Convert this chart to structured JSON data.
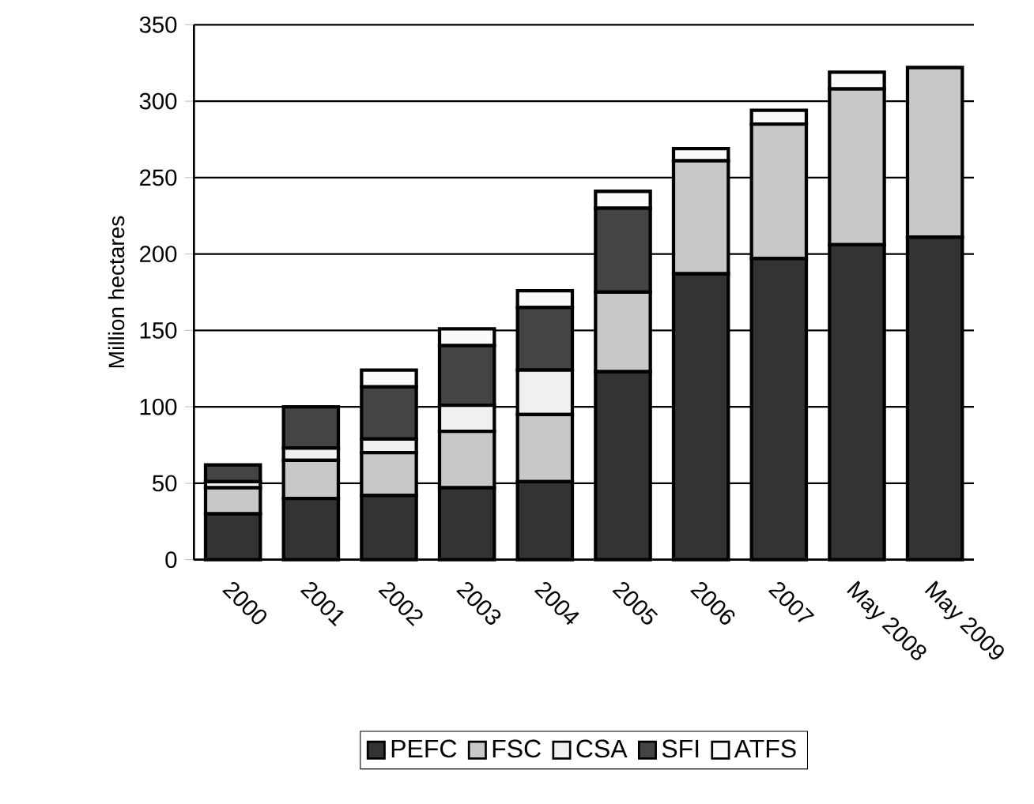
{
  "chart_data": {
    "type": "bar",
    "stacked": true,
    "ylabel": "Million hectares",
    "categories": [
      "2000",
      "2001",
      "2002",
      "2003",
      "2004",
      "2005",
      "2006",
      "2007",
      "May 2008",
      "May 2009"
    ],
    "series": [
      {
        "name": "PEFC",
        "color": "#333333",
        "values": [
          30,
          40,
          42,
          47,
          51,
          123,
          187,
          197,
          206,
          211
        ]
      },
      {
        "name": "FSC",
        "color": "#c8c8c8",
        "values": [
          17,
          25,
          28,
          37,
          44,
          52,
          74,
          88,
          102,
          111
        ]
      },
      {
        "name": "CSA",
        "color": "#f0f0f0",
        "values": [
          4,
          8,
          9,
          17,
          29,
          0,
          0,
          0,
          0,
          0
        ]
      },
      {
        "name": "SFI",
        "color": "#444444",
        "values": [
          11,
          27,
          34,
          39,
          41,
          55,
          0,
          0,
          0,
          0
        ]
      },
      {
        "name": "ATFS",
        "color": "#fafafa",
        "values": [
          0,
          0,
          11,
          11,
          11,
          11,
          8,
          9,
          11,
          0
        ]
      }
    ],
    "ylim": [
      0,
      350
    ],
    "yticks": [
      0,
      50,
      100,
      150,
      200,
      250,
      300,
      350
    ],
    "grid": "y",
    "legend": "bottom"
  }
}
